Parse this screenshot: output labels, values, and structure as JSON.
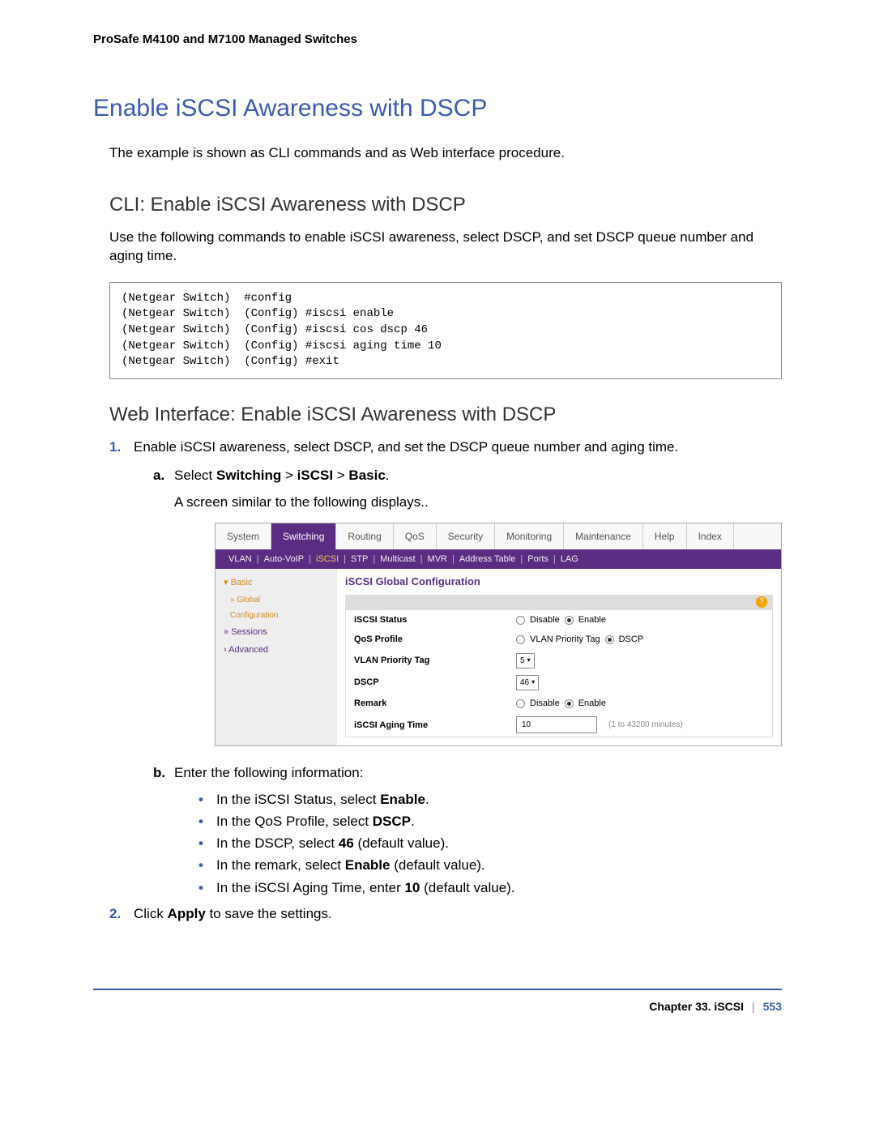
{
  "header": "ProSafe M4100 and M7100 Managed Switches",
  "title": "Enable iSCSI Awareness with DSCP",
  "intro": "The example is shown as CLI commands and as Web interface procedure.",
  "cli": {
    "heading": "CLI: Enable iSCSI Awareness with DSCP",
    "para": "Use the following commands to enable iSCSI awareness, select DSCP, and set DSCP queue number and aging time.",
    "lines": [
      "(Netgear Switch)  #config",
      "(Netgear Switch)  (Config) #iscsi enable",
      "(Netgear Switch)  (Config) #iscsi cos dscp 46",
      "(Netgear Switch)  (Config) #iscsi aging time 10",
      "(Netgear Switch)  (Config) #exit"
    ]
  },
  "web": {
    "heading": "Web Interface: Enable iSCSI Awareness with DSCP",
    "step1": "Enable iSCSI awareness, select DSCP, and set the DSCP queue number and aging time.",
    "step1a_pre": "Select ",
    "step1a_b1": "Switching",
    "step1a_gt1": " > ",
    "step1a_b2": "iSCSI",
    "step1a_gt2": " > ",
    "step1a_b3": "Basic",
    "step1a_post": ".",
    "step1a_after": "A screen similar to the following displays..",
    "step1b": "Enter the following information:",
    "b1_pre": "In the iSCSI Status, select ",
    "b1_b": "Enable",
    "b1_post": ".",
    "b2_pre": "In the QoS Profile, select ",
    "b2_b": "DSCP",
    "b2_post": ".",
    "b3_pre": "In the DSCP, select ",
    "b3_b": "46",
    "b3_post": " (default value).",
    "b4_pre": "In the remark, select ",
    "b4_b": "Enable",
    "b4_post": " (default value).",
    "b5_pre": "In the iSCSI Aging Time, enter ",
    "b5_b": "10",
    "b5_post": " (default value).",
    "step2_pre": "Click ",
    "step2_b": "Apply",
    "step2_post": " to save the settings."
  },
  "ui": {
    "tabs": [
      "System",
      "Switching",
      "Routing",
      "QoS",
      "Security",
      "Monitoring",
      "Maintenance",
      "Help",
      "Index"
    ],
    "active_tab": "Switching",
    "subnav": [
      "VLAN",
      "Auto-VoIP",
      "iSCSI",
      "STP",
      "Multicast",
      "MVR",
      "Address Table",
      "Ports",
      "LAG"
    ],
    "subnav_active": "iSCSI",
    "sidebar": {
      "basic": "Basic",
      "global": "Global",
      "config": "Configuration",
      "sessions": "Sessions",
      "advanced": "Advanced"
    },
    "panel_title": "iSCSI Global Configuration",
    "rows": {
      "status": {
        "label": "iSCSI Status",
        "opt1": "Disable",
        "opt2": "Enable"
      },
      "qos": {
        "label": "QoS Profile",
        "opt1": "VLAN Priority Tag",
        "opt2": "DSCP"
      },
      "vlan": {
        "label": "VLAN Priority Tag",
        "value": "5"
      },
      "dscp": {
        "label": "DSCP",
        "value": "46"
      },
      "remark": {
        "label": "Remark",
        "opt1": "Disable",
        "opt2": "Enable"
      },
      "aging": {
        "label": "iSCSI Aging Time",
        "value": "10",
        "hint": "(1 to 43200 minutes)"
      }
    }
  },
  "footer": {
    "chapter": "Chapter 33.  iSCSI",
    "sep": "|",
    "page": "553"
  },
  "colors": {
    "heading": "#3a5caa",
    "purple": "#5a2d82",
    "orange": "#d48a1c"
  }
}
